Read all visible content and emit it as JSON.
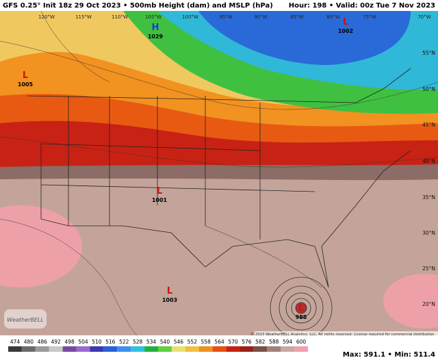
{
  "header": {
    "title": "GFS 0.25° Init 18z 29 Oct 2023 • 500mb Height (dam) and MSLP (hPa)",
    "valid": "Hour: 198 • Valid: 00z Tue 7 Nov 2023"
  },
  "longitudes": [
    "120°W",
    "115°W",
    "110°W",
    "105°W",
    "100°W",
    "95°W",
    "90°W",
    "85°W",
    "80°W",
    "75°W",
    "70°W"
  ],
  "latitudes": [
    "55°N",
    "50°N",
    "45°N",
    "40°N",
    "35°N",
    "30°N",
    "25°N",
    "20°N"
  ],
  "centers": [
    {
      "symbol": "H",
      "pressure": 1029
    },
    {
      "symbol": "L",
      "pressure": 1002
    },
    {
      "symbol": "L",
      "pressure": 1005
    },
    {
      "symbol": "L",
      "pressure": 1001
    },
    {
      "symbol": "L",
      "pressure": 1003
    },
    {
      "symbol": "L",
      "pressure": 988
    }
  ],
  "credit": "© 2023 WeatherBELL Analytics, LLC. All rights reserved. License required for commercial distribution.",
  "logo": "WeatherBELL",
  "colorbar": {
    "labels": [
      474,
      480,
      486,
      492,
      498,
      504,
      510,
      516,
      522,
      528,
      534,
      540,
      546,
      552,
      558,
      564,
      570,
      576,
      582,
      588,
      594,
      600
    ],
    "colors": [
      "#3a3a3a",
      "#6a6a6a",
      "#9a9a9a",
      "#c8c8c8",
      "#7a4aa0",
      "#9a6ad0",
      "#3a3ab0",
      "#2a60d8",
      "#3a90f0",
      "#30c0e0",
      "#20b040",
      "#60d040",
      "#e8e070",
      "#f0c040",
      "#f09020",
      "#e85010",
      "#c82010",
      "#9a2018",
      "#7a5048",
      "#a08078",
      "#c8a8a0",
      "#f0a0b0"
    ]
  },
  "stats": "Max: 591.1 • Min: 511.4"
}
